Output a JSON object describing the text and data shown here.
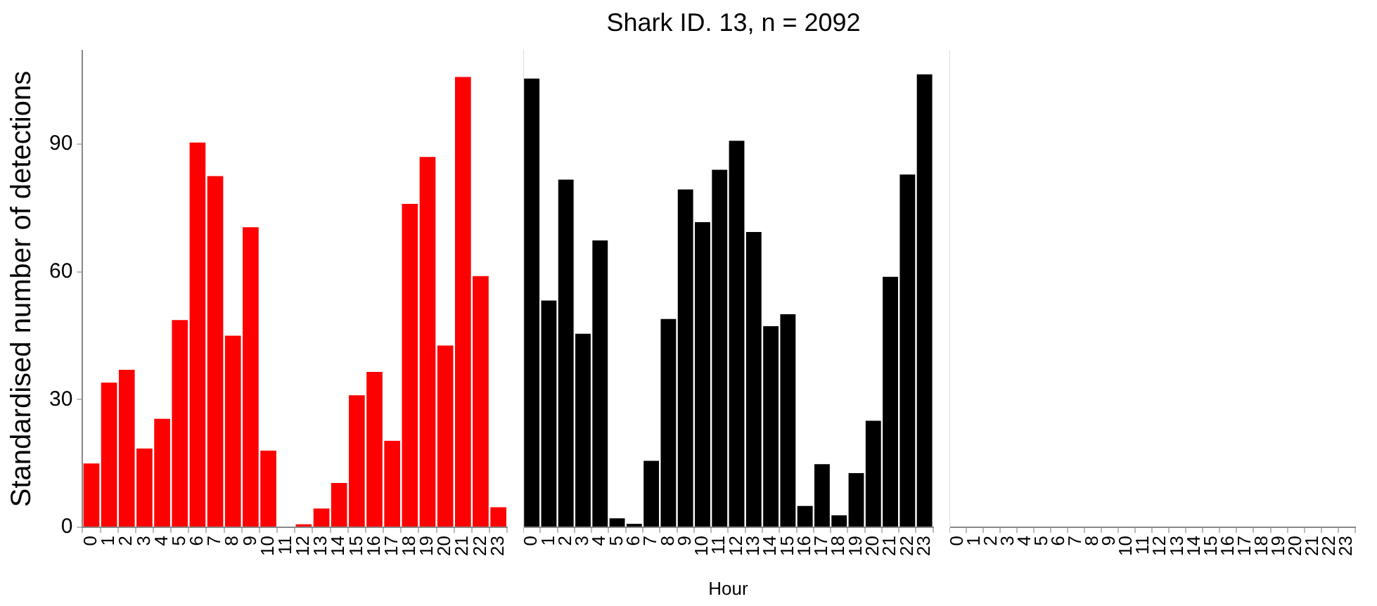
{
  "chart_data": [
    {
      "type": "bar",
      "ylabel": "Standardised number of detections",
      "categories": [
        "0",
        "1",
        "2",
        "3",
        "4",
        "5",
        "6",
        "7",
        "8",
        "9",
        "10",
        "11",
        "12",
        "13",
        "14",
        "15",
        "16",
        "17",
        "18",
        "19",
        "20",
        "21",
        "22",
        "23"
      ],
      "values": [
        15,
        34,
        37,
        18.5,
        25.5,
        48.7,
        90.4,
        82.5,
        45,
        70.5,
        18,
        0,
        0.7,
        4.4,
        10.4,
        31,
        36.5,
        20.3,
        76,
        87,
        42.7,
        105.8,
        59,
        4.7
      ],
      "color": "#ff0000",
      "ylim": [
        0,
        112
      ],
      "yticks": [
        0,
        30,
        60,
        90
      ]
    },
    {
      "type": "bar",
      "title": "Shark ID. 13, n = 2092",
      "xlabel": "Hour",
      "categories": [
        "0",
        "1",
        "2",
        "3",
        "4",
        "5",
        "6",
        "7",
        "8",
        "9",
        "10",
        "11",
        "12",
        "13",
        "14",
        "15",
        "16",
        "17",
        "18",
        "19",
        "20",
        "21",
        "22",
        "23"
      ],
      "values": [
        105.3,
        53.2,
        81.6,
        45.4,
        67.3,
        2.1,
        0.8,
        15.6,
        48.9,
        79.3,
        71.6,
        83.9,
        90.7,
        69.3,
        47.2,
        50,
        5,
        14.8,
        2.8,
        12.7,
        25,
        58.8,
        82.8,
        106.3
      ],
      "color": "#000000",
      "ylim": [
        0,
        112
      ],
      "tick_labels": "x"
    },
    {
      "type": "bar",
      "categories": [
        "0",
        "1",
        "2",
        "3",
        "4",
        "5",
        "6",
        "7",
        "8",
        "9",
        "10",
        "11",
        "12",
        "13",
        "14",
        "15",
        "16",
        "17",
        "18",
        "19",
        "20",
        "21",
        "22",
        "23"
      ],
      "values": [
        0,
        0,
        0,
        0,
        0,
        0,
        0,
        0,
        0,
        0,
        0,
        0,
        0,
        0,
        0,
        0,
        0,
        0,
        0,
        0,
        0,
        0,
        0,
        0
      ],
      "ylim": [
        0,
        112
      ],
      "tick_labels": "x"
    }
  ]
}
